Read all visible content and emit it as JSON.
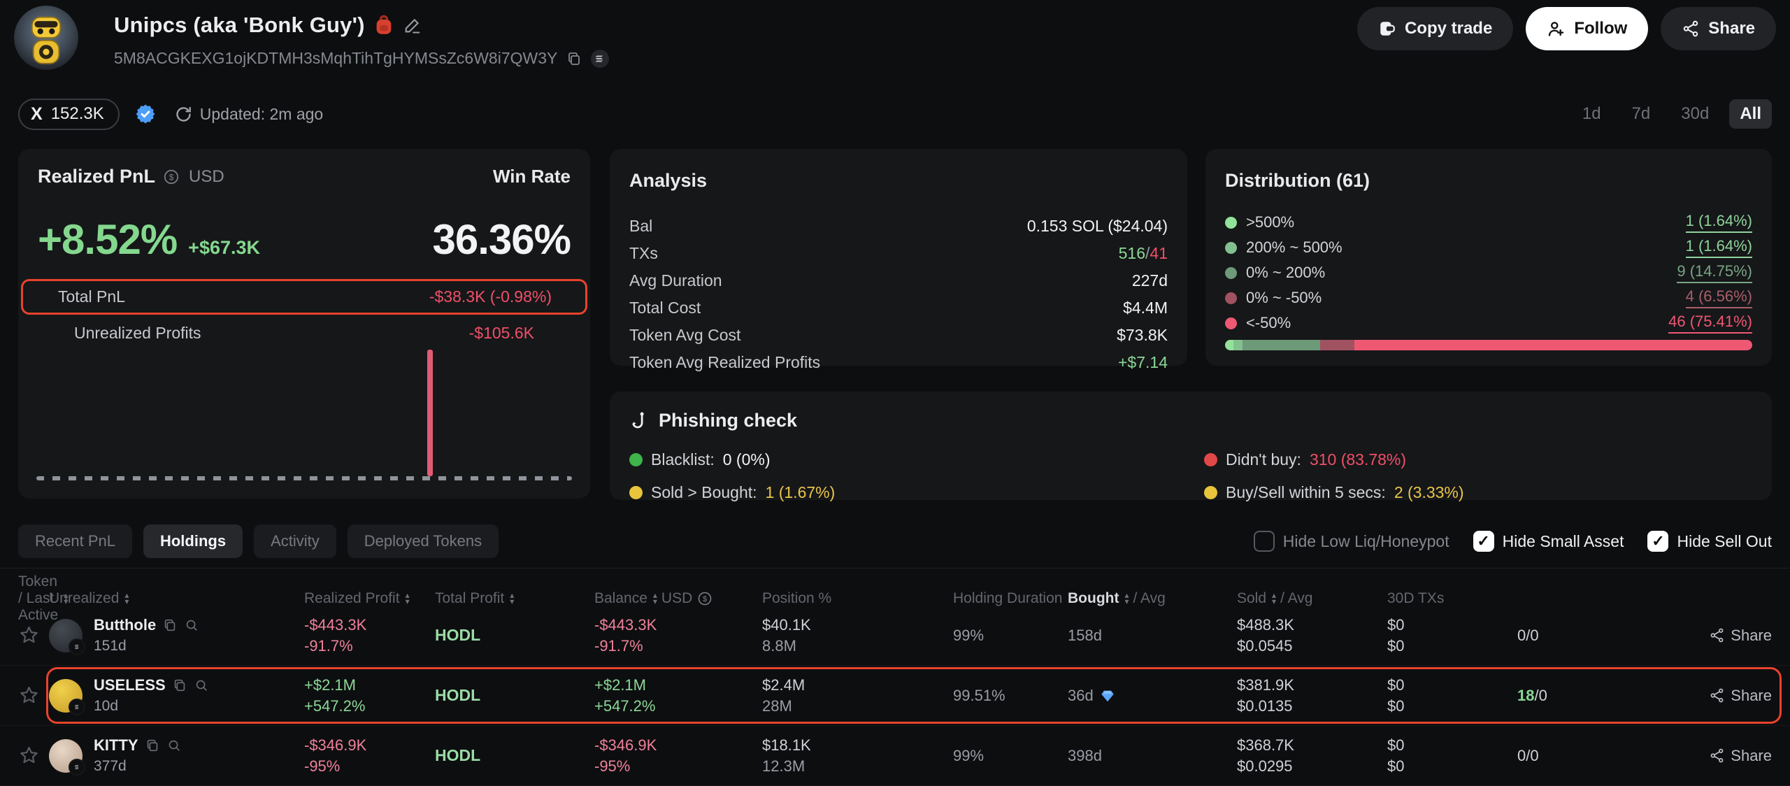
{
  "header": {
    "name": "Unipcs (aka 'Bonk Guy')",
    "address": "5M8ACGKEXG1ojKDTMH3sMqhTihTgHYMSsZc6W8i7QW3Y",
    "buttons": {
      "copy_trade": "Copy trade",
      "follow": "Follow",
      "share": "Share"
    },
    "followers": "152.3K",
    "updated": "Updated: 2m ago",
    "time_filters": [
      {
        "label": "1d",
        "active": false
      },
      {
        "label": "7d",
        "active": false
      },
      {
        "label": "30d",
        "active": false
      },
      {
        "label": "All",
        "active": true
      }
    ]
  },
  "realized_pnl": {
    "title": "Realized PnL",
    "currency": "USD",
    "win_rate_label": "Win Rate",
    "pnl_pct": "+8.52%",
    "pnl_amount": "+$67.3K",
    "win_rate": "36.36%",
    "total_pnl_label": "Total PnL",
    "total_pnl_value": "-$38.3K (-0.98%)",
    "unrealized_label": "Unrealized Profits",
    "unrealized_value": "-$105.6K",
    "chart": {
      "type": "bar",
      "baseline": "dashed",
      "bars": [
        {
          "x_pct": 73,
          "height_pct": 84,
          "color": "#e25b74",
          "direction": "negative"
        }
      ]
    }
  },
  "analysis": {
    "title": "Analysis",
    "rows": [
      {
        "label": "Bal",
        "parts": [
          {
            "t": "0.153 SOL ($24.04)",
            "c": "white"
          }
        ]
      },
      {
        "label": "TXs",
        "parts": [
          {
            "t": "516",
            "c": "green"
          },
          {
            "t": "/",
            "c": "gray"
          },
          {
            "t": "41",
            "c": "red"
          }
        ]
      },
      {
        "label": "Avg Duration",
        "parts": [
          {
            "t": "227d",
            "c": "white"
          }
        ]
      },
      {
        "label": "Total Cost",
        "parts": [
          {
            "t": "$4.4M",
            "c": "white"
          }
        ]
      },
      {
        "label": "Token Avg Cost",
        "parts": [
          {
            "t": "$73.8K",
            "c": "white"
          }
        ]
      },
      {
        "label": "Token Avg Realized Profits",
        "parts": [
          {
            "t": "+$7.14",
            "c": "green"
          }
        ]
      }
    ]
  },
  "distribution": {
    "title": "Distribution (61)",
    "rows": [
      {
        "label": ">500%",
        "value": "1 (1.64%)",
        "pct": 1.64,
        "dot": "#92e39a",
        "cls": "d-green"
      },
      {
        "label": "200% ~ 500%",
        "value": "1 (1.64%)",
        "pct": 1.64,
        "dot": "#83c08f",
        "cls": "d-green"
      },
      {
        "label": "0% ~ 200%",
        "value": "9 (14.75%)",
        "pct": 14.75,
        "dot": "#6d9a79",
        "cls": "d-greendim"
      },
      {
        "label": "0% ~ -50%",
        "value": "4 (6.56%)",
        "pct": 6.56,
        "dot": "#a05261",
        "cls": "d-reddim"
      },
      {
        "label": "<-50%",
        "value": "46 (75.41%)",
        "pct": 75.41,
        "dot": "#ef5873",
        "cls": "d-red"
      }
    ]
  },
  "phishing": {
    "title": "Phishing check",
    "items": [
      {
        "label": "Blacklist:",
        "value": "0 (0%)",
        "dot": "#3eb44a",
        "vcls": "c-white",
        "col": 1
      },
      {
        "label": "Sold > Bought:",
        "value": "1 (1.67%)",
        "dot": "#e9c53c",
        "vcls": "c-yellow",
        "col": 1
      },
      {
        "label": "Didn't buy:",
        "value": "310 (83.78%)",
        "dot": "#e04848",
        "vcls": "c-red",
        "col": 2
      },
      {
        "label": "Buy/Sell within 5 secs:",
        "value": "2 (3.33%)",
        "dot": "#e9c53c",
        "vcls": "c-yellow",
        "col": 2
      }
    ]
  },
  "tabs": [
    {
      "label": "Recent PnL",
      "active": false
    },
    {
      "label": "Holdings",
      "active": true
    },
    {
      "label": "Activity",
      "active": false
    },
    {
      "label": "Deployed Tokens",
      "active": false
    }
  ],
  "filters": [
    {
      "label": "Hide Low Liq/Honeypot",
      "checked": false
    },
    {
      "label": "Hide Small Asset",
      "checked": true
    },
    {
      "label": "Hide Sell Out",
      "checked": true
    }
  ],
  "table": {
    "columns": [
      {
        "label": "Token / Last Active",
        "sort": true
      },
      {
        "label": "Unrealized",
        "sort": true
      },
      {
        "label": "Realized Profit",
        "sort": true
      },
      {
        "label": "Total Profit",
        "sort": true
      },
      {
        "label": "Balance",
        "sort": true,
        "suffix": "USD",
        "icon": "usd"
      },
      {
        "label": "Position %"
      },
      {
        "label": "Holding Duration"
      },
      {
        "label": "Bought",
        "sort": true,
        "suffix": "/ Avg",
        "active": true
      },
      {
        "label": "Sold",
        "sort": true,
        "suffix": "/ Avg"
      },
      {
        "label": "30D TXs"
      },
      {
        "label": ""
      },
      {
        "label": ""
      }
    ],
    "rows": [
      {
        "token": "Butthole",
        "last_active": "151d",
        "avatar": [
          "#454a52",
          "#23262b"
        ],
        "unrealized": [
          {
            "t": "-$443.3K",
            "c": "pink"
          },
          {
            "t": "-91.7%",
            "c": "pink"
          }
        ],
        "realized": "HODL",
        "total": [
          {
            "t": "-$443.3K",
            "c": "pink"
          },
          {
            "t": "-91.7%",
            "c": "pink"
          }
        ],
        "balance": [
          {
            "t": "$40.1K",
            "c": "light"
          },
          {
            "t": "8.8M",
            "c": "gray"
          }
        ],
        "position": "99%",
        "holding": "158d",
        "diamond": false,
        "bought": [
          {
            "t": "$488.3K",
            "c": "light"
          },
          {
            "t": "$0.0545",
            "c": "light"
          }
        ],
        "sold": [
          {
            "t": "$0",
            "c": "light"
          },
          {
            "t": "$0",
            "c": "light"
          }
        ],
        "txs": [
          {
            "t": "0/0",
            "c": "light"
          }
        ],
        "share": "Share",
        "highlight": false
      },
      {
        "token": "USELESS",
        "last_active": "10d",
        "avatar": [
          "#f0d04a",
          "#c79a28"
        ],
        "unrealized": [
          {
            "t": "+$2.1M",
            "c": "green"
          },
          {
            "t": "+547.2%",
            "c": "green"
          }
        ],
        "realized": "HODL",
        "total": [
          {
            "t": "+$2.1M",
            "c": "green"
          },
          {
            "t": "+547.2%",
            "c": "green"
          }
        ],
        "balance": [
          {
            "t": "$2.4M",
            "c": "light"
          },
          {
            "t": "28M",
            "c": "gray"
          }
        ],
        "position": "99.51%",
        "holding": "36d",
        "diamond": true,
        "bought": [
          {
            "t": "$381.9K",
            "c": "light"
          },
          {
            "t": "$0.0135",
            "c": "light"
          }
        ],
        "sold": [
          {
            "t": "$0",
            "c": "light"
          },
          {
            "t": "$0",
            "c": "light"
          }
        ],
        "txs": [
          {
            "t": "18",
            "c": "green"
          },
          {
            "t": "/0",
            "c": "light"
          }
        ],
        "share": "Share",
        "highlight": true
      },
      {
        "token": "KITTY",
        "last_active": "377d",
        "avatar": [
          "#e8d8c6",
          "#b59a88"
        ],
        "unrealized": [
          {
            "t": "-$346.9K",
            "c": "pink"
          },
          {
            "t": "-95%",
            "c": "pink"
          }
        ],
        "realized": "HODL",
        "total": [
          {
            "t": "-$346.9K",
            "c": "pink"
          },
          {
            "t": "-95%",
            "c": "pink"
          }
        ],
        "balance": [
          {
            "t": "$18.1K",
            "c": "light"
          },
          {
            "t": "12.3M",
            "c": "gray"
          }
        ],
        "position": "99%",
        "holding": "398d",
        "diamond": false,
        "bought": [
          {
            "t": "$368.7K",
            "c": "light"
          },
          {
            "t": "$0.0295",
            "c": "light"
          }
        ],
        "sold": [
          {
            "t": "$0",
            "c": "light"
          },
          {
            "t": "$0",
            "c": "light"
          }
        ],
        "txs": [
          {
            "t": "0/0",
            "c": "light"
          }
        ],
        "share": "Share",
        "highlight": false
      }
    ]
  }
}
